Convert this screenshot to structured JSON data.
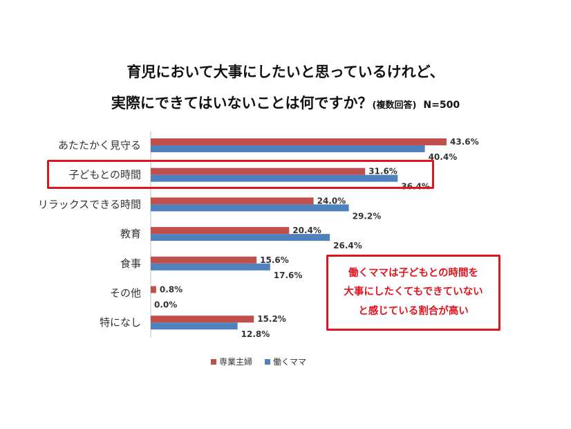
{
  "title_line1": "育児において大事にしたいと思っているけれど、",
  "title_line2": "実際にできてはいないことは何ですか？",
  "title_note": "(複数回答)",
  "sample_size": "N=500",
  "callout_lines": [
    "働くママは子どもとの時間を",
    "大事にしたくてもできていない",
    "と感じている割合が高い"
  ],
  "colors": {
    "housewife": "#c0504d",
    "working_mom": "#4f81bd",
    "accent": "#e0141e"
  },
  "chart_data": {
    "type": "bar",
    "orientation": "horizontal",
    "categories": [
      "あたたかく見守る",
      "子どもとの時間",
      "リラックスできる時間",
      "教育",
      "食事",
      "その他",
      "特になし"
    ],
    "series": [
      {
        "name": "専業主婦",
        "values": [
          43.6,
          31.6,
          24.0,
          20.4,
          15.6,
          0.8,
          15.2
        ]
      },
      {
        "name": "働くママ",
        "values": [
          40.4,
          36.4,
          29.2,
          26.4,
          17.6,
          0.0,
          12.8
        ]
      }
    ],
    "value_labels": [
      [
        "43.6%",
        "31.6%",
        "24.0%",
        "20.4%",
        "15.6%",
        "0.8%",
        "15.2%"
      ],
      [
        "40.4%",
        "36.4%",
        "29.2%",
        "26.4%",
        "17.6%",
        "0.0%",
        "12.8%"
      ]
    ],
    "xlim": [
      0,
      45
    ],
    "grid": false,
    "legend_position": "bottom",
    "highlighted_category": "子どもとの時間"
  }
}
